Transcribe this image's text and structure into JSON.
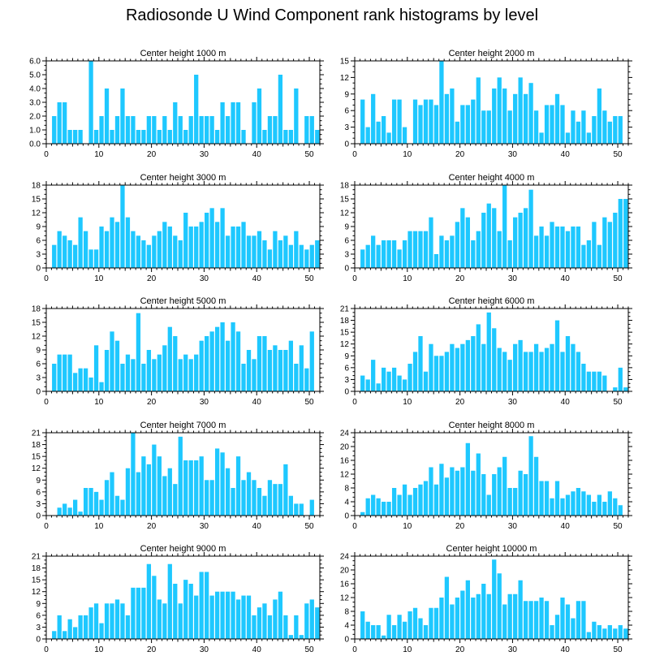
{
  "figure_title": "Radiosonde U Wind Component rank histograms by level",
  "bar_color": "#1ec8ff",
  "chart_data": [
    {
      "type": "bar",
      "title": "Center height 1000 m",
      "xlim": [
        0,
        52
      ],
      "ylim": [
        0,
        6
      ],
      "yticks": [
        0,
        1,
        2,
        3,
        4,
        5,
        6
      ],
      "ytick_labels": [
        "0.0",
        "1.0",
        "2.0",
        "3.0",
        "4.0",
        "5.0",
        "6.0"
      ],
      "xticks": [
        0,
        10,
        20,
        30,
        40,
        50
      ],
      "values": [
        0,
        2,
        3,
        3,
        1,
        1,
        1,
        0,
        6,
        1,
        2,
        4,
        1,
        2,
        4,
        2,
        2,
        1,
        1,
        2,
        2,
        1,
        2,
        1,
        3,
        2,
        1,
        2,
        5,
        2,
        2,
        2,
        1,
        3,
        2,
        3,
        3,
        1,
        0,
        3,
        4,
        1,
        2,
        2,
        5,
        1,
        1,
        4,
        0,
        2,
        2,
        1
      ]
    },
    {
      "type": "bar",
      "title": "Center height 2000 m",
      "xlim": [
        0,
        52
      ],
      "ylim": [
        0,
        15
      ],
      "yticks": [
        0,
        3,
        6,
        9,
        12,
        15
      ],
      "ytick_labels": [
        "0",
        "3",
        "6",
        "9",
        "12",
        "15"
      ],
      "xticks": [
        0,
        10,
        20,
        30,
        40,
        50
      ],
      "values": [
        0,
        8,
        3,
        9,
        4,
        5,
        2,
        8,
        8,
        3,
        0,
        8,
        7,
        8,
        8,
        7,
        15,
        9,
        10,
        4,
        7,
        7,
        8,
        12,
        6,
        6,
        10,
        12,
        10,
        6,
        9,
        12,
        9,
        11,
        6,
        2,
        7,
        7,
        9,
        7,
        2,
        6,
        4,
        6,
        2,
        5,
        10,
        6,
        4,
        5,
        5,
        0
      ]
    },
    {
      "type": "bar",
      "title": "Center height 3000 m",
      "xlim": [
        0,
        52
      ],
      "ylim": [
        0,
        18
      ],
      "yticks": [
        0,
        3,
        6,
        9,
        12,
        15,
        18
      ],
      "ytick_labels": [
        "0",
        "3",
        "6",
        "9",
        "12",
        "15",
        "18"
      ],
      "xticks": [
        0,
        10,
        20,
        30,
        40,
        50
      ],
      "values": [
        0,
        5,
        8,
        7,
        6,
        5,
        11,
        8,
        4,
        4,
        9,
        8,
        11,
        10,
        18,
        11,
        8,
        7,
        6,
        5,
        7,
        8,
        10,
        9,
        7,
        6,
        12,
        9,
        9,
        10,
        12,
        13,
        10,
        13,
        7,
        9,
        9,
        10,
        7,
        7,
        8,
        6,
        4,
        8,
        6,
        7,
        5,
        8,
        5,
        4,
        5,
        6
      ]
    },
    {
      "type": "bar",
      "title": "Center height 4000 m",
      "xlim": [
        0,
        52
      ],
      "ylim": [
        0,
        18
      ],
      "yticks": [
        0,
        3,
        6,
        9,
        12,
        15,
        18
      ],
      "ytick_labels": [
        "0",
        "3",
        "6",
        "9",
        "12",
        "15",
        "18"
      ],
      "xticks": [
        0,
        10,
        20,
        30,
        40,
        50
      ],
      "values": [
        0,
        4,
        5,
        7,
        5,
        6,
        6,
        6,
        4,
        6,
        8,
        8,
        8,
        8,
        11,
        3,
        7,
        6,
        7,
        10,
        13,
        11,
        6,
        8,
        12,
        14,
        13,
        8,
        18,
        6,
        11,
        12,
        13,
        17,
        7,
        9,
        7,
        10,
        9,
        9,
        8,
        9,
        9,
        5,
        6,
        10,
        5,
        11,
        10,
        12,
        15,
        15
      ]
    },
    {
      "type": "bar",
      "title": "Center height 5000 m",
      "xlim": [
        0,
        52
      ],
      "ylim": [
        0,
        18
      ],
      "yticks": [
        0,
        3,
        6,
        9,
        12,
        15,
        18
      ],
      "ytick_labels": [
        "0",
        "3",
        "6",
        "9",
        "12",
        "15",
        "18"
      ],
      "xticks": [
        0,
        10,
        20,
        30,
        40,
        50
      ],
      "values": [
        0,
        6,
        8,
        8,
        8,
        4,
        5,
        5,
        3,
        10,
        2,
        9,
        13,
        11,
        6,
        8,
        7,
        17,
        6,
        9,
        7,
        8,
        10,
        14,
        12,
        7,
        8,
        7,
        8,
        11,
        12,
        13,
        14,
        15,
        11,
        15,
        13,
        6,
        9,
        7,
        12,
        12,
        9,
        10,
        9,
        9,
        11,
        6,
        10,
        5,
        13,
        0
      ]
    },
    {
      "type": "bar",
      "title": "Center height 6000 m",
      "xlim": [
        0,
        52
      ],
      "ylim": [
        0,
        21
      ],
      "yticks": [
        0,
        3,
        6,
        9,
        12,
        15,
        18,
        21
      ],
      "ytick_labels": [
        "0",
        "3",
        "6",
        "9",
        "12",
        "15",
        "18",
        "21"
      ],
      "xticks": [
        0,
        10,
        20,
        30,
        40,
        50
      ],
      "values": [
        0,
        4,
        3,
        8,
        2,
        6,
        5,
        6,
        4,
        3,
        7,
        10,
        14,
        5,
        12,
        9,
        9,
        10,
        12,
        11,
        12,
        13,
        14,
        17,
        12,
        20,
        16,
        11,
        10,
        8,
        12,
        13,
        10,
        10,
        12,
        10,
        11,
        12,
        18,
        10,
        14,
        12,
        10,
        7,
        5,
        5,
        5,
        4,
        0,
        1,
        6,
        1
      ]
    },
    {
      "type": "bar",
      "title": "Center height 7000 m",
      "xlim": [
        0,
        52
      ],
      "ylim": [
        0,
        21
      ],
      "yticks": [
        0,
        3,
        6,
        9,
        12,
        15,
        18,
        21
      ],
      "ytick_labels": [
        "0",
        "3",
        "6",
        "9",
        "12",
        "15",
        "18",
        "21"
      ],
      "xticks": [
        0,
        10,
        20,
        30,
        40,
        50
      ],
      "values": [
        0,
        0,
        2,
        3,
        2,
        4,
        1,
        7,
        7,
        6,
        4,
        9,
        11,
        5,
        4,
        12,
        21,
        11,
        15,
        13,
        18,
        15,
        10,
        12,
        8,
        20,
        14,
        14,
        14,
        15,
        9,
        9,
        17,
        16,
        12,
        7,
        15,
        9,
        11,
        9,
        7,
        5,
        9,
        8,
        8,
        13,
        5,
        3,
        3,
        0,
        4,
        0
      ]
    },
    {
      "type": "bar",
      "title": "Center height 8000 m",
      "xlim": [
        0,
        52
      ],
      "ylim": [
        0,
        24
      ],
      "yticks": [
        0,
        4,
        8,
        12,
        16,
        20,
        24
      ],
      "ytick_labels": [
        "0",
        "4",
        "8",
        "12",
        "16",
        "20",
        "24"
      ],
      "xticks": [
        0,
        10,
        20,
        30,
        40,
        50
      ],
      "values": [
        0,
        1,
        5,
        6,
        5,
        4,
        4,
        8,
        6,
        9,
        6,
        8,
        9,
        10,
        14,
        9,
        15,
        11,
        14,
        13,
        14,
        21,
        13,
        18,
        12,
        6,
        12,
        14,
        17,
        8,
        8,
        13,
        12,
        23,
        17,
        10,
        10,
        5,
        10,
        5,
        6,
        7,
        8,
        7,
        6,
        4,
        6,
        4,
        7,
        5,
        3,
        0
      ]
    },
    {
      "type": "bar",
      "title": "Center height 9000 m",
      "xlim": [
        0,
        52
      ],
      "ylim": [
        0,
        21
      ],
      "yticks": [
        0,
        3,
        6,
        9,
        12,
        15,
        18,
        21
      ],
      "ytick_labels": [
        "0",
        "3",
        "6",
        "9",
        "12",
        "15",
        "18",
        "21"
      ],
      "xticks": [
        0,
        10,
        20,
        30,
        40,
        50
      ],
      "values": [
        0,
        2,
        6,
        2,
        5,
        3,
        6,
        6,
        8,
        9,
        4,
        9,
        9,
        10,
        9,
        6,
        13,
        13,
        13,
        19,
        16,
        10,
        9,
        19,
        14,
        9,
        15,
        14,
        11,
        17,
        17,
        11,
        12,
        12,
        12,
        12,
        10,
        11,
        11,
        6,
        8,
        9,
        6,
        10,
        12,
        6,
        1,
        6,
        1,
        9,
        10,
        8
      ]
    },
    {
      "type": "bar",
      "title": "Center height 10000 m",
      "xlim": [
        0,
        52
      ],
      "ylim": [
        0,
        24
      ],
      "yticks": [
        0,
        4,
        8,
        12,
        16,
        20,
        24
      ],
      "ytick_labels": [
        "0",
        "4",
        "8",
        "12",
        "16",
        "20",
        "24"
      ],
      "xticks": [
        0,
        10,
        20,
        30,
        40,
        50
      ],
      "values": [
        0,
        8,
        5,
        4,
        4,
        1,
        7,
        4,
        7,
        5,
        8,
        9,
        6,
        4,
        9,
        9,
        12,
        18,
        10,
        12,
        14,
        17,
        12,
        13,
        16,
        13,
        23,
        19,
        10,
        13,
        13,
        17,
        11,
        11,
        11,
        12,
        11,
        4,
        7,
        12,
        10,
        6,
        11,
        11,
        2,
        5,
        4,
        3,
        4,
        3,
        4,
        3
      ]
    }
  ]
}
